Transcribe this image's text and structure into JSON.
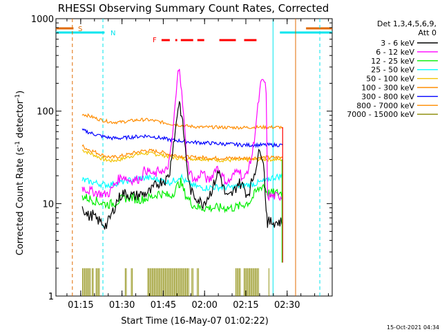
{
  "chart_data": {
    "type": "line",
    "title": "RHESSI Observing Summary Count Rates, Corrected",
    "xlabel": "Start Time (16-May-07 01:02:22)",
    "ylabel_main": "Corrected Count Rate (s",
    "ylabel_sup1": "-1",
    "ylabel_mid": " detector",
    "ylabel_sup2": "-1",
    "ylabel_end": ")",
    "y_scale": "log",
    "ylim": [
      1,
      1000
    ],
    "y_ticks": [
      {
        "v": 1,
        "label": "1"
      },
      {
        "v": 10,
        "label": "10"
      },
      {
        "v": 100,
        "label": "100"
      },
      {
        "v": 1000,
        "label": "1000"
      }
    ],
    "xlim_min": [
      3.63,
      104.0
    ],
    "x_ticks": [
      {
        "v": 12.63,
        "label": "01:15"
      },
      {
        "v": 27.63,
        "label": "01:30"
      },
      {
        "v": 42.63,
        "label": "01:45"
      },
      {
        "v": 57.63,
        "label": "02:00"
      },
      {
        "v": 72.63,
        "label": "02:15"
      },
      {
        "v": 87.63,
        "label": "02:30"
      }
    ],
    "legend_header": [
      "Det 1,3,4,5,6,9,",
      "Att 0"
    ],
    "footer_date": "15-Oct-2021 04:34",
    "flags": [
      {
        "label": "S",
        "color": "#e06a00"
      },
      {
        "label": "N",
        "color": "#00e5ee"
      },
      {
        "label": "F",
        "color": "#ff0000"
      }
    ],
    "series": [
      {
        "name": "3 - 6 keV",
        "color": "#000000"
      },
      {
        "name": "6 - 12 keV",
        "color": "#ff00ff"
      },
      {
        "name": "12 - 25 keV",
        "color": "#00ee00"
      },
      {
        "name": "25 - 50 keV",
        "color": "#00ffff"
      },
      {
        "name": "50 - 100 keV",
        "color": "#f2c300"
      },
      {
        "name": "100 - 300 keV",
        "color": "#ff8c00"
      },
      {
        "name": "300 - 800 keV",
        "color": "#0000ff"
      },
      {
        "name": "800 - 7000 keV",
        "color": "#ff8c00"
      },
      {
        "name": "7000 - 15000 keV",
        "color": "#888800"
      }
    ],
    "traces": [
      {
        "series": 0,
        "x": [
          13.2,
          14,
          15,
          16,
          17,
          18,
          19,
          20,
          21,
          22,
          24,
          26,
          28,
          30,
          32,
          34,
          36,
          38,
          40,
          42,
          44,
          45,
          46,
          47,
          48,
          48.5,
          49,
          50,
          51,
          52,
          53,
          54,
          55,
          56,
          57,
          58,
          59,
          60,
          61,
          62,
          63,
          64,
          65,
          66,
          68,
          70,
          72,
          73,
          74,
          75,
          76,
          77,
          78,
          79,
          80,
          80.5,
          81,
          82,
          84,
          86
        ],
        "y": [
          9.5,
          8.5,
          7.5,
          7.2,
          7.6,
          6.8,
          6.6,
          6.3,
          6,
          5.8,
          7.8,
          11,
          13,
          12.5,
          12,
          12.5,
          12.8,
          13.5,
          16,
          17.5,
          18.5,
          22,
          40,
          60,
          110,
          130,
          100,
          60,
          30,
          16,
          13,
          12,
          11.5,
          10.5,
          10,
          11,
          12,
          13.5,
          16,
          20,
          22,
          17,
          13,
          11.5,
          13,
          17,
          15,
          12.5,
          14,
          18,
          23,
          32,
          38,
          30,
          9,
          6.2,
          6.3,
          6.3,
          6.3,
          6.3
        ]
      },
      {
        "series": 1,
        "x": [
          13.2,
          15,
          17,
          19,
          21,
          23,
          26,
          28,
          30,
          32,
          34,
          35,
          36,
          37,
          38,
          39,
          40,
          41,
          42,
          43,
          44,
          45,
          46,
          47,
          48,
          48.5,
          49,
          50,
          51,
          52,
          53,
          54,
          55,
          56,
          57,
          58,
          59,
          60,
          61,
          62,
          63,
          64,
          65,
          66,
          67,
          68,
          69,
          70,
          71,
          72,
          73,
          74,
          75,
          76,
          77,
          78,
          79,
          80,
          80.5,
          81,
          82,
          84,
          86
        ],
        "y": [
          15,
          14,
          13.5,
          13,
          12.5,
          13,
          18,
          20,
          18,
          18,
          18.5,
          20,
          24,
          22,
          22,
          20,
          21,
          23,
          23,
          21,
          24,
          30,
          55,
          120,
          260,
          320,
          200,
          90,
          35,
          23,
          20,
          18,
          18,
          21,
          22,
          19,
          17.5,
          19,
          22,
          25,
          23,
          20,
          18,
          17,
          18,
          20,
          22,
          25,
          20,
          18,
          22,
          26,
          35,
          60,
          110,
          190,
          220,
          170,
          12,
          12,
          12,
          12,
          12
        ]
      },
      {
        "series": 2,
        "x": [
          13.2,
          15,
          17,
          19,
          21,
          23,
          25,
          27,
          29,
          31,
          33,
          35,
          37,
          39,
          41,
          43,
          45,
          46,
          47,
          48,
          49,
          50,
          51,
          52,
          53,
          54,
          55,
          56,
          58,
          60,
          62,
          64,
          66,
          68,
          70,
          72,
          74,
          75,
          76,
          77,
          78,
          79,
          80,
          80.5,
          81,
          82,
          84,
          86
        ],
        "y": [
          12,
          11.5,
          11,
          10.5,
          10,
          9.8,
          10.2,
          11,
          11.5,
          11.8,
          11,
          11.2,
          11.5,
          12,
          13,
          12.5,
          12,
          12.8,
          14,
          16,
          17,
          14,
          12,
          11,
          10,
          9.5,
          9.2,
          9.0,
          9,
          9,
          9,
          9,
          9,
          9,
          9.3,
          9.8,
          10.5,
          11.5,
          13,
          14,
          15,
          16,
          14,
          13,
          13,
          13,
          13,
          13
        ]
      },
      {
        "series": 3,
        "x": [
          13.2,
          15,
          17,
          19,
          21,
          23,
          25,
          27,
          29,
          31,
          33,
          35,
          37,
          39,
          41,
          43,
          45,
          47,
          48,
          49,
          50,
          51,
          52,
          53,
          54,
          56,
          58,
          60,
          62,
          64,
          66,
          68,
          70,
          72,
          74,
          76,
          78,
          80,
          80.5,
          81,
          82,
          84,
          86
        ],
        "y": [
          18,
          17.5,
          17,
          16.5,
          16,
          16,
          16.5,
          17,
          17.5,
          18,
          18.5,
          19,
          19,
          18.5,
          18,
          17.5,
          17,
          18,
          19,
          20,
          18,
          17,
          16.5,
          16,
          15.5,
          15,
          14.8,
          15,
          15,
          15,
          15,
          15,
          15.5,
          15.8,
          16,
          16.5,
          17,
          17.5,
          18,
          18.5,
          19,
          19.5,
          20
        ]
      },
      {
        "series": 4,
        "x": [
          13.2,
          15,
          17,
          19,
          21,
          24,
          27,
          30,
          33,
          36,
          39,
          42,
          45,
          48,
          51,
          54,
          57,
          60,
          63,
          66,
          69,
          72,
          75,
          78,
          81,
          84,
          86
        ],
        "y": [
          38,
          36,
          34,
          32,
          30,
          29,
          30,
          32,
          34,
          35,
          34.5,
          33.5,
          32,
          31,
          30.5,
          30.5,
          30.5,
          30,
          29.5,
          29.5,
          29.5,
          29.5,
          30,
          30,
          30,
          30,
          30
        ]
      },
      {
        "series": 5,
        "x": [
          13.2,
          15,
          17,
          19,
          21,
          24,
          27,
          30,
          33,
          36,
          39,
          42,
          45,
          48,
          51,
          54,
          57,
          60,
          63,
          66,
          69,
          72,
          75,
          78,
          81,
          84,
          86
        ],
        "y": [
          42,
          39,
          37,
          35,
          33,
          31.5,
          32.5,
          34,
          36,
          37.5,
          37,
          36,
          34,
          33,
          32,
          31.5,
          31.5,
          31,
          31,
          31,
          31,
          31,
          31,
          31.5,
          31.5,
          31.5,
          31.5
        ]
      },
      {
        "series": 6,
        "x": [
          13.2,
          15,
          17,
          19,
          21,
          24,
          27,
          30,
          33,
          36,
          39,
          42,
          45,
          48,
          51,
          54,
          57,
          60,
          63,
          66,
          69,
          72,
          75,
          78,
          81,
          84,
          86
        ],
        "y": [
          62,
          60,
          57,
          55,
          53,
          51,
          51,
          52,
          53,
          54,
          53,
          51,
          49,
          48,
          47,
          46,
          45.5,
          45,
          44.5,
          44,
          43.5,
          43,
          43,
          43,
          43,
          43,
          43
        ]
      },
      {
        "series": 7,
        "x": [
          13.2,
          15,
          17,
          19,
          21,
          24,
          27,
          30,
          33,
          36,
          39,
          42,
          45,
          48,
          51,
          54,
          57,
          60,
          63,
          66,
          69,
          72,
          75,
          78,
          81,
          84,
          86
        ],
        "y": [
          93,
          90,
          86,
          82,
          79,
          76,
          76,
          78,
          80,
          81,
          79,
          76,
          73,
          71,
          69,
          68,
          67,
          67,
          67,
          66.5,
          66.5,
          66.5,
          67,
          67,
          67,
          67,
          67
        ]
      }
    ],
    "bars_7000": [
      [
        13.3,
        16.5
      ],
      [
        16.8,
        17.3
      ],
      [
        18.2,
        19.6
      ],
      [
        28.8,
        29.4
      ],
      [
        31.0,
        31.5
      ],
      [
        37.0,
        52.0
      ],
      [
        53.0,
        53.5
      ],
      [
        55.0,
        55.8
      ],
      [
        69.0,
        70.8
      ],
      [
        72.0,
        77.5
      ],
      [
        81.0,
        81.4
      ]
    ],
    "bars_7000_value": 2,
    "flag_segments": {
      "S": [
        [
          0,
          10.0
        ],
        [
          94.5,
          104
        ]
      ],
      "N": [
        [
          0,
          21.3
        ],
        [
          85.0,
          104
        ]
      ],
      "F": [
        [
          42.0,
          45.0
        ],
        [
          47.0,
          47.7
        ],
        [
          49.0,
          53.5
        ],
        [
          55.0,
          57.5
        ],
        [
          63.0,
          69.0
        ],
        [
          72.0,
          76.5
        ]
      ]
    },
    "vlines": [
      {
        "x": 9.6,
        "color": "#e06a00",
        "style": "dashed"
      },
      {
        "x": 20.7,
        "color": "#00e5ee",
        "style": "dashed"
      },
      {
        "x": 82.5,
        "color": "#00e5ee",
        "style": "solid"
      },
      {
        "x": 90.7,
        "color": "#e06a00",
        "style": "solid"
      },
      {
        "x": 99.5,
        "color": "#00e5ee",
        "style": "dashed"
      }
    ],
    "drop_end": {
      "x": 86.0,
      "y": 2.3
    }
  }
}
